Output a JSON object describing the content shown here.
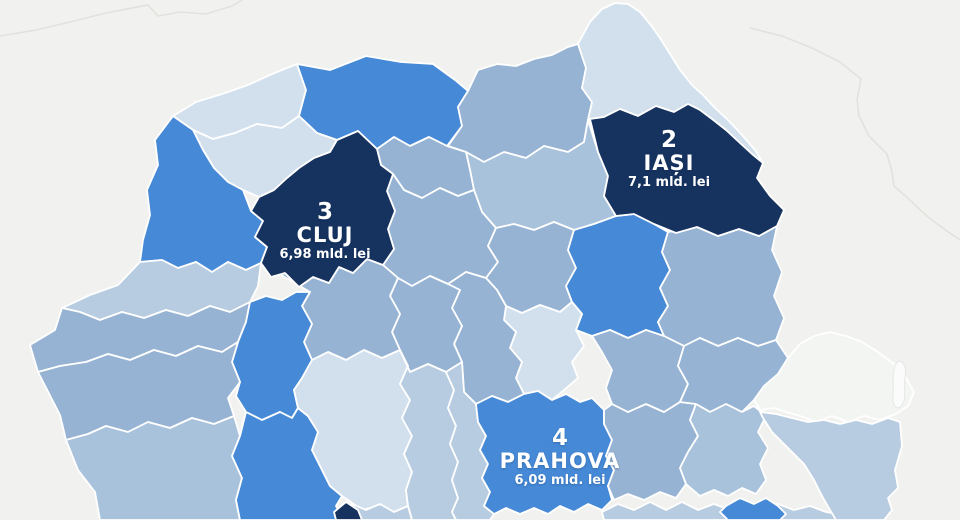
{
  "map": {
    "description": "choropleth-map-of-romania-counties",
    "background_color": "#f1f1ef",
    "county_border_color": "#ffffff",
    "neighbor_border_color": "#e2e2dd",
    "palette": {
      "pale": "#d2e0ee",
      "light": "#b7cce1",
      "mid": "#a9c2dc",
      "steel": "#96b3d3",
      "bright": "#4689d6",
      "navy": "#16325f",
      "faint": "#f3f5f3"
    },
    "counties": [
      {
        "id": "satu-mare",
        "shade": "pale"
      },
      {
        "id": "maramures",
        "shade": "bright"
      },
      {
        "id": "suceava",
        "shade": "steel"
      },
      {
        "id": "botosani",
        "shade": "pale"
      },
      {
        "id": "neamt",
        "shade": "mid"
      },
      {
        "id": "bistrita-nasaud",
        "shade": "steel"
      },
      {
        "id": "salaj",
        "shade": "pale"
      },
      {
        "id": "bihor",
        "shade": "bright"
      },
      {
        "id": "mures",
        "shade": "steel"
      },
      {
        "id": "harghita",
        "shade": "steel"
      },
      {
        "id": "bacau",
        "shade": "bright"
      },
      {
        "id": "vaslui",
        "shade": "steel"
      },
      {
        "id": "covasna",
        "shade": "pale"
      },
      {
        "id": "brasov",
        "shade": "steel"
      },
      {
        "id": "sibiu",
        "shade": "steel"
      },
      {
        "id": "alba",
        "shade": "steel"
      },
      {
        "id": "arad",
        "shade": "light"
      },
      {
        "id": "timis",
        "shade": "steel"
      },
      {
        "id": "hunedoara",
        "shade": "bright"
      },
      {
        "id": "caras-severin",
        "shade": "steel"
      },
      {
        "id": "mehedinti",
        "shade": "mid"
      },
      {
        "id": "gorj",
        "shade": "bright"
      },
      {
        "id": "valcea",
        "shade": "pale"
      },
      {
        "id": "arges",
        "shade": "light"
      },
      {
        "id": "dambovita",
        "shade": "light"
      },
      {
        "id": "olt",
        "shade": "light"
      },
      {
        "id": "prahova",
        "shade": "bright"
      },
      {
        "id": "buzau",
        "shade": "steel"
      },
      {
        "id": "vrancea",
        "shade": "steel"
      },
      {
        "id": "galati",
        "shade": "steel"
      },
      {
        "id": "braila",
        "shade": "mid"
      },
      {
        "id": "ialomita",
        "shade": "light"
      },
      {
        "id": "calarasi",
        "shade": "bright"
      },
      {
        "id": "tulcea",
        "shade": "faint"
      },
      {
        "id": "constanta",
        "shade": "light"
      },
      {
        "id": "cluj",
        "shade": "navy"
      },
      {
        "id": "iasi",
        "shade": "navy"
      },
      {
        "id": "dolj",
        "shade": "navy"
      }
    ],
    "labels": [
      {
        "id": "iasi",
        "rank": "2",
        "name": "IAȘI",
        "value": "7,1 mld. lei"
      },
      {
        "id": "cluj",
        "rank": "3",
        "name": "CLUJ",
        "value": "6,98 mld. lei"
      },
      {
        "id": "prahova",
        "rank": "4",
        "name": "PRAHOVA",
        "value": "6,09 mld. lei"
      }
    ]
  }
}
